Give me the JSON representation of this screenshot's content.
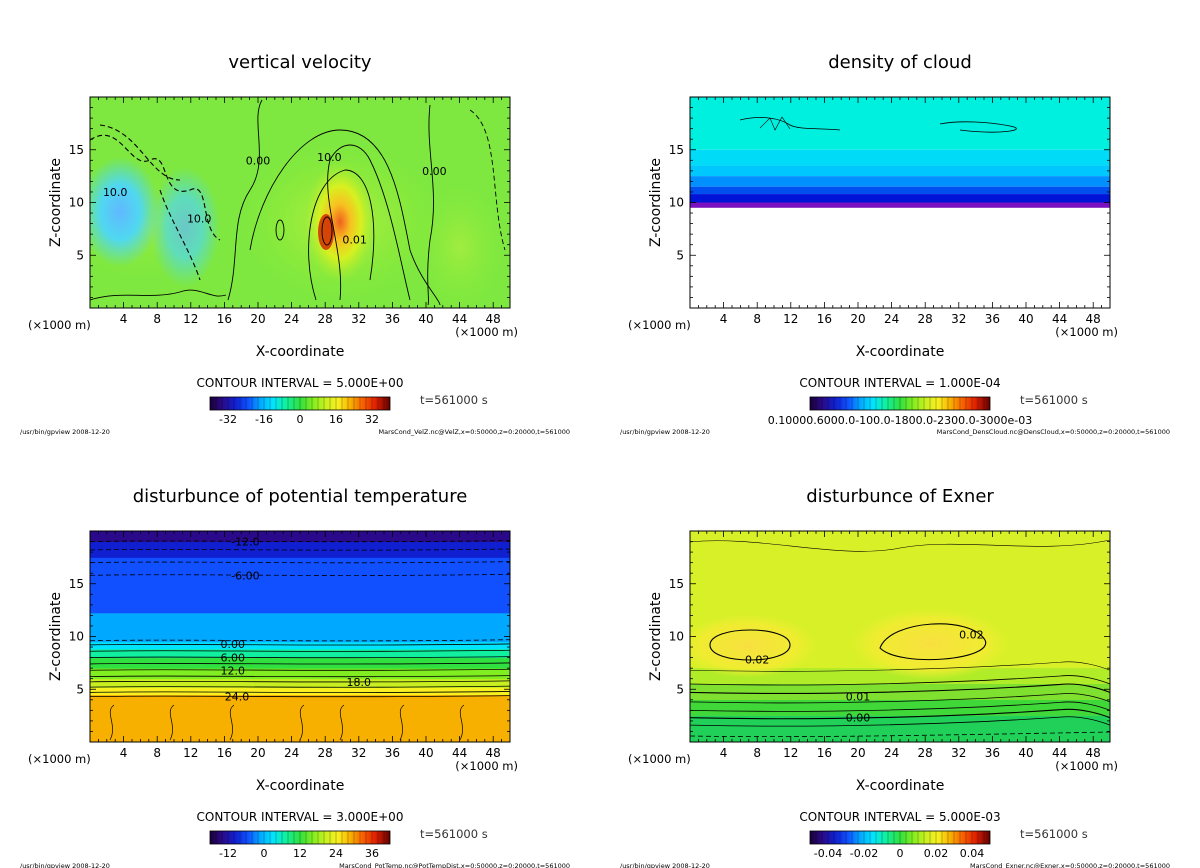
{
  "chart_data": [
    {
      "type": "heatmap",
      "id": "vel",
      "title": "vertical velocity",
      "xlabel": "X-coordinate",
      "ylabel": "Z-coordinate",
      "x_unit_left": "(×1000 m)",
      "x_unit_right": "(×1000 m)",
      "xlim": [
        0,
        50
      ],
      "ylim": [
        0,
        20
      ],
      "xticks": [
        4,
        8,
        12,
        16,
        20,
        24,
        28,
        32,
        36,
        40,
        44,
        48
      ],
      "yticks": [
        5,
        10,
        15
      ],
      "contour_interval": "CONTOUR INTERVAL = 5.000E+00",
      "time": "t=561000 s",
      "colorbar_range": [
        -40,
        40
      ],
      "colorbar_ticks": [
        "-32",
        "-16",
        "0",
        "16",
        "32"
      ],
      "contour_labels": [
        {
          "text": "10.0",
          "x": 3,
          "y": 11
        },
        {
          "text": "10.0",
          "x": 13,
          "y": 8.5
        },
        {
          "text": "0.00",
          "x": 20,
          "y": 14
        },
        {
          "text": "10.0",
          "x": 28.5,
          "y": 14.3
        },
        {
          "text": "0.00",
          "x": 41,
          "y": 13
        },
        {
          "text": "0.01",
          "x": 31.5,
          "y": 6.5
        }
      ],
      "footer_left": "/usr/bin/gpview  2008-12-20",
      "footer_right": "MarsCond_VelZ.nc@VelZ,x=0:50000,z=0:20000,t=561000"
    },
    {
      "type": "heatmap",
      "id": "cloud",
      "title": "density of cloud",
      "xlabel": "X-coordinate",
      "ylabel": "Z-coordinate",
      "x_unit_left": "(×1000 m)",
      "x_unit_right": "(×1000 m)",
      "xlim": [
        0,
        50
      ],
      "ylim": [
        0,
        20
      ],
      "xticks": [
        4,
        8,
        12,
        16,
        20,
        24,
        28,
        32,
        36,
        40,
        44,
        48
      ],
      "yticks": [
        5,
        10,
        15
      ],
      "contour_interval": "CONTOUR INTERVAL = 1.000E-04",
      "time": "t=561000 s",
      "colorbar_ticks_text": "0.10000.6000.0-100.0-1800.0-2300.0-3000e-03",
      "cloud_base_z": 9.5,
      "footer_left": "/usr/bin/gpview  2008-12-20",
      "footer_right": "MarsCond_DensCloud.nc@DensCloud,x=0:50000,z=0:20000,t=561000"
    },
    {
      "type": "heatmap",
      "id": "ptemp",
      "title": "disturbunce of potential temperature",
      "xlabel": "X-coordinate",
      "ylabel": "Z-coordinate",
      "x_unit_left": "(×1000 m)",
      "x_unit_right": "(×1000 m)",
      "xlim": [
        0,
        50
      ],
      "ylim": [
        0,
        20
      ],
      "xticks": [
        4,
        8,
        12,
        16,
        20,
        24,
        28,
        32,
        36,
        40,
        44,
        48
      ],
      "yticks": [
        5,
        10,
        15
      ],
      "contour_interval": "CONTOUR INTERVAL = 3.000E+00",
      "time": "t=561000 s",
      "colorbar_range": [
        -18,
        42
      ],
      "colorbar_ticks": [
        "-12",
        "0",
        "12",
        "24",
        "36"
      ],
      "profile": [
        [
          0,
          27
        ],
        [
          4,
          27
        ],
        [
          4.5,
          24
        ],
        [
          5.5,
          18
        ],
        [
          7,
          12
        ],
        [
          8.5,
          6
        ],
        [
          9.5,
          0
        ],
        [
          10.5,
          -3
        ],
        [
          14,
          -5
        ],
        [
          17,
          -6
        ],
        [
          18,
          -10
        ],
        [
          19,
          -12
        ],
        [
          20,
          -14
        ]
      ],
      "contour_labels": [
        {
          "text": "-12.0",
          "x": 18.5,
          "y": 19
        },
        {
          "text": "-6.00",
          "x": 18.5,
          "y": 15.8
        },
        {
          "text": "0.00",
          "x": 17,
          "y": 9.3
        },
        {
          "text": "6.00",
          "x": 17,
          "y": 8
        },
        {
          "text": "12.0",
          "x": 17,
          "y": 6.8
        },
        {
          "text": "18.0",
          "x": 32,
          "y": 5.7
        },
        {
          "text": "24.0",
          "x": 17.5,
          "y": 4.3
        }
      ],
      "footer_left": "/usr/bin/gpview  2008-12-20",
      "footer_right": "MarsCond_PotTemp.nc@PotTempDist,x=0:50000,z=0:20000,t=561000"
    },
    {
      "type": "heatmap",
      "id": "exner",
      "title": "disturbunce of Exner",
      "xlabel": "X-coordinate",
      "ylabel": "Z-coordinate",
      "x_unit_left": "(×1000 m)",
      "x_unit_right": "(×1000 m)",
      "xlim": [
        0,
        50
      ],
      "ylim": [
        0,
        20
      ],
      "xticks": [
        4,
        8,
        12,
        16,
        20,
        24,
        28,
        32,
        36,
        40,
        44,
        48
      ],
      "yticks": [
        5,
        10,
        15
      ],
      "contour_interval": "CONTOUR INTERVAL = 5.000E-03",
      "time": "t=561000 s",
      "colorbar_range": [
        -0.05,
        0.05
      ],
      "colorbar_ticks": [
        "-0.04",
        "-0.02",
        "0",
        "0.02",
        "0.04"
      ],
      "contour_labels": [
        {
          "text": "0.02",
          "x": 8,
          "y": 7.8
        },
        {
          "text": "0.02",
          "x": 33.5,
          "y": 10.2
        },
        {
          "text": "0.01",
          "x": 20,
          "y": 4.3
        },
        {
          "text": "0.00",
          "x": 20,
          "y": 2.3
        }
      ],
      "footer_left": "/usr/bin/gpview  2008-12-20",
      "footer_right": "MarsCond_Exner.nc@Exner,x=0:50000,z=0:20000,t=561000"
    }
  ],
  "palette": {
    "rainbow": [
      "#1a0038",
      "#2a0a8a",
      "#1020d0",
      "#1050ff",
      "#00a8ff",
      "#00e4ff",
      "#10f0a0",
      "#30e040",
      "#80ee20",
      "#c8f020",
      "#f8f020",
      "#f8b000",
      "#f86000",
      "#e02000",
      "#a00000",
      "#600000"
    ],
    "cloud_top": "#00f0e0",
    "cloud_mid": "#00c8ff",
    "cloud_deep": "#0014d8",
    "cloud_base": "#7a10c0"
  }
}
